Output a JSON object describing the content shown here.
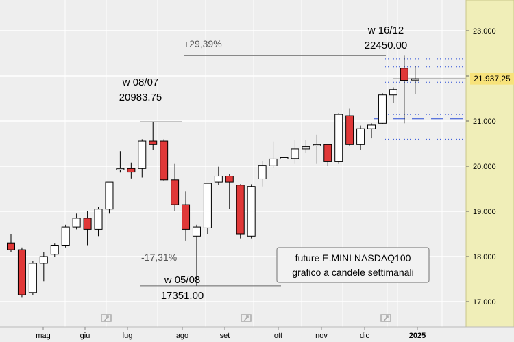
{
  "chart_data": {
    "type": "candlestick",
    "title": "",
    "y_range": [
      16500,
      23500
    ],
    "y_ticks": [
      {
        "value": 23000,
        "label": "23.000"
      },
      {
        "value": 22000,
        "label": "22.000"
      },
      {
        "value": 21000,
        "label": "21.000"
      },
      {
        "value": 20000,
        "label": "20.000"
      },
      {
        "value": 19000,
        "label": "19.000"
      },
      {
        "value": 18000,
        "label": "18.000"
      },
      {
        "value": 17000,
        "label": "17.000"
      }
    ],
    "x_ticks": [
      "mag",
      "giu",
      "lug",
      "ago",
      "set",
      "ott",
      "nov",
      "dic",
      "2025"
    ],
    "last_price": {
      "value": 21937.25,
      "label": "21.937,25"
    },
    "candles": [
      {
        "o": 18300,
        "h": 18500,
        "l": 18100,
        "c": 18150
      },
      {
        "o": 18150,
        "h": 18200,
        "l": 17100,
        "c": 17150
      },
      {
        "o": 17200,
        "h": 17900,
        "l": 17150,
        "c": 17850
      },
      {
        "o": 17850,
        "h": 18100,
        "l": 17450,
        "c": 18000
      },
      {
        "o": 18050,
        "h": 18300,
        "l": 18000,
        "c": 18250
      },
      {
        "o": 18250,
        "h": 18700,
        "l": 18200,
        "c": 18650
      },
      {
        "o": 18650,
        "h": 18950,
        "l": 18600,
        "c": 18850
      },
      {
        "o": 18850,
        "h": 19000,
        "l": 18250,
        "c": 18600
      },
      {
        "o": 18600,
        "h": 19100,
        "l": 18450,
        "c": 19050
      },
      {
        "o": 19050,
        "h": 19650,
        "l": 18950,
        "c": 19650
      },
      {
        "o": 19920,
        "h": 20330,
        "l": 19860,
        "c": 19950
      },
      {
        "o": 19950,
        "h": 20080,
        "l": 19730,
        "c": 19870
      },
      {
        "o": 19950,
        "h": 20600,
        "l": 19750,
        "c": 20560
      },
      {
        "o": 20560,
        "h": 20983.75,
        "l": 20350,
        "c": 20480
      },
      {
        "o": 20560,
        "h": 20600,
        "l": 19680,
        "c": 19700
      },
      {
        "o": 19700,
        "h": 20050,
        "l": 19000,
        "c": 19150
      },
      {
        "o": 19150,
        "h": 19450,
        "l": 18350,
        "c": 18600
      },
      {
        "o": 18450,
        "h": 18700,
        "l": 17351,
        "c": 18650
      },
      {
        "o": 18630,
        "h": 19620,
        "l": 18500,
        "c": 19620
      },
      {
        "o": 19650,
        "h": 19990,
        "l": 19580,
        "c": 19780
      },
      {
        "o": 19780,
        "h": 19830,
        "l": 19050,
        "c": 19650
      },
      {
        "o": 19580,
        "h": 19600,
        "l": 18400,
        "c": 18500
      },
      {
        "o": 18450,
        "h": 19600,
        "l": 18400,
        "c": 19550
      },
      {
        "o": 19720,
        "h": 20120,
        "l": 19550,
        "c": 20020
      },
      {
        "o": 20010,
        "h": 20550,
        "l": 19970,
        "c": 20160
      },
      {
        "o": 20160,
        "h": 20380,
        "l": 19850,
        "c": 20190
      },
      {
        "o": 20170,
        "h": 20580,
        "l": 20050,
        "c": 20380
      },
      {
        "o": 20380,
        "h": 20580,
        "l": 20300,
        "c": 20430
      },
      {
        "o": 20480,
        "h": 20700,
        "l": 20050,
        "c": 20480
      },
      {
        "o": 20480,
        "h": 20500,
        "l": 20000,
        "c": 20100
      },
      {
        "o": 20100,
        "h": 21180,
        "l": 20050,
        "c": 21150
      },
      {
        "o": 21120,
        "h": 21280,
        "l": 20450,
        "c": 20480
      },
      {
        "o": 20480,
        "h": 20900,
        "l": 20350,
        "c": 20830
      },
      {
        "o": 20830,
        "h": 20950,
        "l": 20620,
        "c": 20910
      },
      {
        "o": 20950,
        "h": 21620,
        "l": 20930,
        "c": 21580
      },
      {
        "o": 21580,
        "h": 21750,
        "l": 21400,
        "c": 21700
      },
      {
        "o": 22170,
        "h": 22450,
        "l": 20950,
        "c": 21900
      },
      {
        "o": 21930,
        "h": 22210,
        "l": 21600,
        "c": 21937.25
      }
    ],
    "annotations": {
      "high_week": "w 16/12",
      "high_value": "22450.00",
      "mid_week": "w 08/07",
      "mid_value": "20983.75",
      "low_week": "w 05/08",
      "low_value": "17351.00",
      "gain_pct": "+29,39%",
      "loss_pct": "-17,31%"
    },
    "info_box": [
      "future E.MINI NASDAQ100",
      "grafico a candele settimanali"
    ],
    "colors": {
      "up_candle": "#ffffff",
      "down_candle": "#e03838",
      "outline": "#000000",
      "axis_panel": "#f0eeb8",
      "last_price_bg": "#f7e27a",
      "level_lines": "#2b4fd6",
      "grid": "#ffffff",
      "plot_bg": "#eeeeee"
    }
  }
}
